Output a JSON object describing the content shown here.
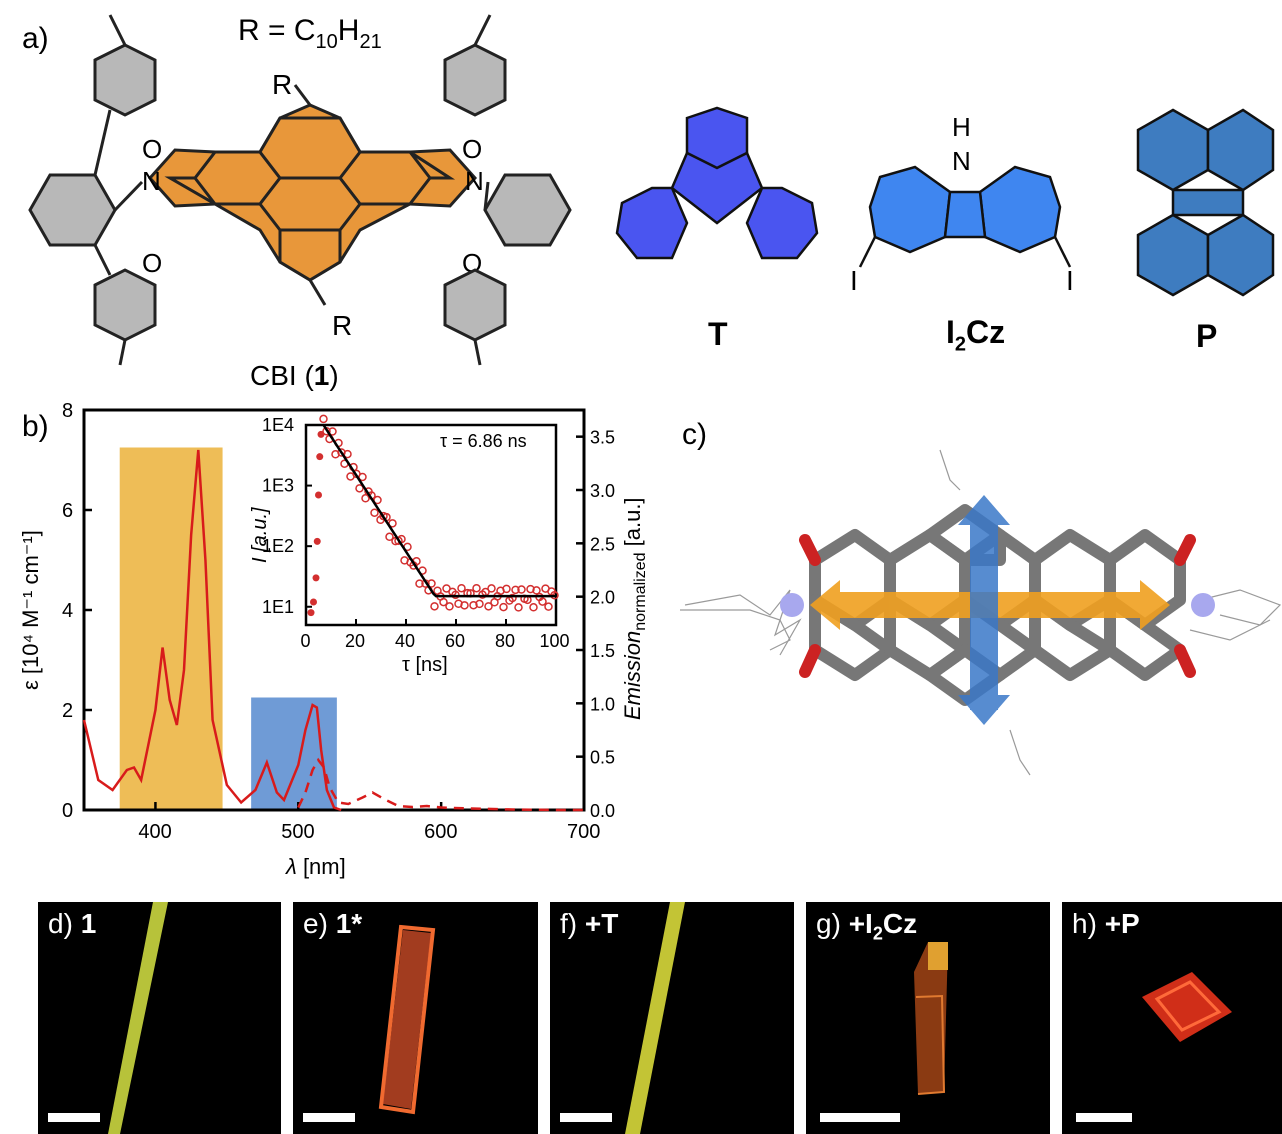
{
  "panel_a": {
    "label": "a)",
    "r_def_prefix": "R = C",
    "r_sub1": "10",
    "r_mid": "H",
    "r_sub2": "21",
    "atom_R": "R",
    "atom_O": "O",
    "atom_N": "N",
    "atom_H": "H",
    "atom_I": "I",
    "cbi_name": "CBI (",
    "cbi_num": "1",
    "cbi_close": ")",
    "compound_T": "T",
    "compound_I2Cz_a": "I",
    "compound_I2Cz_sub": "2",
    "compound_I2Cz_b": "Cz",
    "compound_P": "P",
    "colors": {
      "cbi": "#E8973A",
      "T": "#4A55F0",
      "I2Cz": "#3F86F0",
      "P": "#3E7CC0"
    }
  },
  "panel_b": {
    "label": "b)",
    "xlabel_sym": "λ",
    "xlabel_unit": " [nm]",
    "ylabel_left": "ε [10⁴ M⁻¹ cm⁻¹]",
    "ylabel_right": "Emission",
    "ylabel_right_sub": "normalized",
    "ylabel_right_unit": " [a.u.]",
    "inset_tau": "τ = 6.86 ns",
    "inset_xlabel": "τ [ns]",
    "inset_ylabel": "I [a.u.]"
  },
  "panel_c": {
    "label": "c)"
  },
  "chart_data": [
    {
      "type": "line",
      "x_ticks": [
        "400",
        "500",
        "600",
        "700"
      ],
      "y_left_ticks": [
        "0",
        "2",
        "4",
        "6",
        "8"
      ],
      "y_right_ticks": [
        "0.0",
        "0.5",
        "1.0",
        "1.5",
        "2.0",
        "2.5",
        "3.0",
        "3.5"
      ],
      "xlim": [
        350,
        700
      ],
      "ylim_left": [
        0,
        8
      ],
      "ylim_right": [
        0,
        3.75
      ],
      "series": [
        {
          "style": "solid",
          "color": "#D81B1B",
          "x": [
            350,
            360,
            370,
            380,
            385,
            390,
            400,
            405,
            410,
            415,
            420,
            425,
            430,
            435,
            440,
            450,
            460,
            470,
            478,
            485,
            490,
            500,
            505,
            510,
            513,
            516,
            520,
            525,
            530
          ],
          "y": [
            1.8,
            0.6,
            0.4,
            0.8,
            0.85,
            0.6,
            2.0,
            3.25,
            2.2,
            1.7,
            2.8,
            5.5,
            7.2,
            5.0,
            1.8,
            0.5,
            0.15,
            0.4,
            0.95,
            0.35,
            0.2,
            0.9,
            1.6,
            2.1,
            2.05,
            1.2,
            0.4,
            0.05,
            0.0
          ]
        },
        {
          "style": "dashed",
          "color": "#D81B1B",
          "x": [
            500,
            505,
            510,
            514,
            518,
            522,
            528,
            535,
            545,
            552,
            560,
            570,
            580,
            590,
            600,
            620,
            650,
            680,
            700
          ],
          "y": [
            0.05,
            0.35,
            0.8,
            1.0,
            0.85,
            0.45,
            0.15,
            0.12,
            0.25,
            0.35,
            0.22,
            0.08,
            0.06,
            0.08,
            0.05,
            0.03,
            0.01,
            0.0,
            0.0
          ]
        }
      ],
      "highlight_bands": [
        {
          "x": [
            375,
            447
          ],
          "color": "#EEBD57"
        },
        {
          "x": [
            467,
            527
          ],
          "color": "#6F9BD6"
        }
      ]
    },
    {
      "type": "scatter",
      "x_ticks": [
        "0",
        "20",
        "40",
        "60",
        "80",
        "100"
      ],
      "y_ticks": [
        "1E1",
        "1E2",
        "1E3",
        "1E4"
      ],
      "xlim": [
        0,
        100
      ],
      "ylim_log": [
        5,
        10000
      ],
      "fit": {
        "tau_ns": 6.86,
        "peak_x": 7,
        "peak_y": 10000,
        "floor_y": 15
      },
      "points_color": "#D32F2F"
    }
  ],
  "panel_d": {
    "label": "d)",
    "bold": "1"
  },
  "panel_e": {
    "label": "e)",
    "bold": "1*"
  },
  "panel_f": {
    "label": "f)",
    "bold": "+T"
  },
  "panel_g": {
    "label": "g)",
    "bold_a": "+I",
    "bold_sub": "2",
    "bold_b": "Cz"
  },
  "panel_h": {
    "label": "h)",
    "bold": "+P"
  }
}
